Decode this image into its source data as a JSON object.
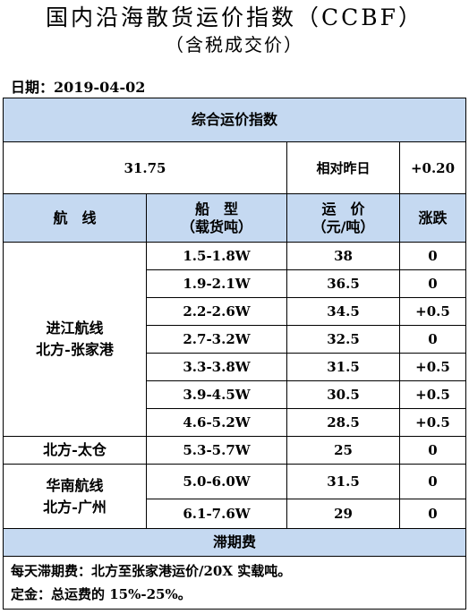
{
  "header": {
    "title": "国内沿海散货运价指数（CCBF）",
    "subtitle": "（含税成交价）",
    "date": "日期：2019-04-02"
  },
  "index": {
    "label": "综合运价指数",
    "value": "31.75",
    "change_label": "相对昨日",
    "change_value": "+0.20"
  },
  "columns": {
    "route": "航　线",
    "ship_line1": "船　型",
    "ship_line2": "（载货吨）",
    "freight_line1": "运　价",
    "freight_line2": "（元/吨）",
    "change": "涨跌"
  },
  "groups": [
    {
      "route_line1": "进江航线",
      "route_line2": "北方-张家港",
      "rows": [
        {
          "ship": "1.5-1.8W",
          "price": "38",
          "change": "0"
        },
        {
          "ship": "1.9-2.1W",
          "price": "36.5",
          "change": "0"
        },
        {
          "ship": "2.2-2.6W",
          "price": "34.5",
          "change": "+0.5"
        },
        {
          "ship": "2.7-3.2W",
          "price": "32.5",
          "change": "0"
        },
        {
          "ship": "3.3-3.8W",
          "price": "31.5",
          "change": "+0.5"
        },
        {
          "ship": "3.9-4.5W",
          "price": "30.5",
          "change": "+0.5"
        },
        {
          "ship": "4.6-5.2W",
          "price": "28.5",
          "change": "+0.5"
        }
      ]
    },
    {
      "route_line1": "北方-太仓",
      "rows": [
        {
          "ship": "5.3-5.7W",
          "price": "25",
          "change": "0"
        }
      ]
    },
    {
      "route_line1": "华南航线",
      "route_line2": "北方-广州",
      "rows": [
        {
          "ship": "5.0-6.0W",
          "price": "31.5",
          "change": "0"
        },
        {
          "ship": "6.1-7.6W",
          "price": "29",
          "change": "0"
        }
      ]
    }
  ],
  "demurrage": {
    "label": "滞期费",
    "note1": "每天滞期费：北方至张家港运价/20X 实载吨。",
    "note2": "定金：总运费的 15%-25%。"
  }
}
